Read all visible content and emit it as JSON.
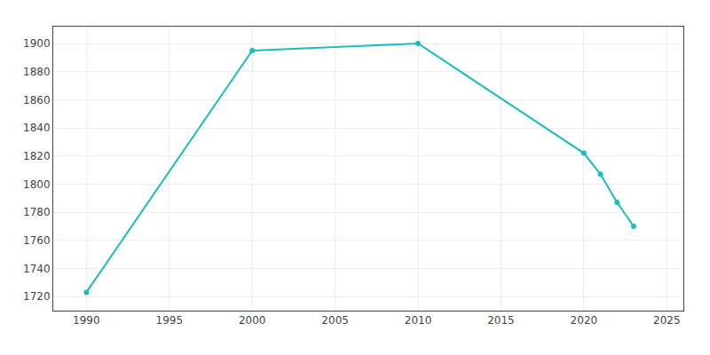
{
  "chart_data": {
    "type": "line",
    "x": [
      1990,
      2000,
      2010,
      2020,
      2021,
      2022,
      2023
    ],
    "values": [
      1723,
      1895,
      1900,
      1822,
      1807,
      1787,
      1770
    ],
    "color": "#17BEC0",
    "marker": "circle",
    "xlim": [
      1988,
      2026
    ],
    "ylim": [
      1710,
      1912
    ],
    "xticks": [
      1990,
      1995,
      2000,
      2005,
      2010,
      2015,
      2020,
      2025
    ],
    "yticks": [
      1720,
      1740,
      1760,
      1780,
      1800,
      1820,
      1840,
      1860,
      1880,
      1900
    ],
    "grid": true
  }
}
